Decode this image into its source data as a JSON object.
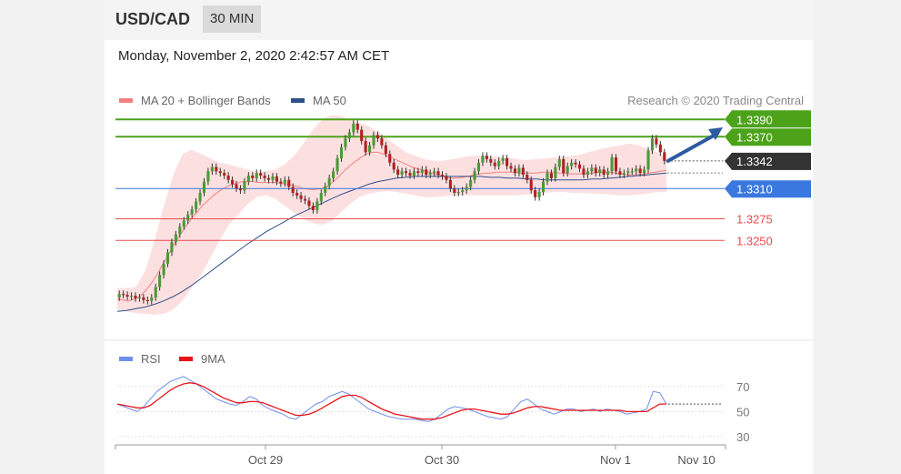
{
  "header": {
    "symbol": "USD/CAD",
    "timeframe": "30 MIN"
  },
  "datetime": "Monday, November 2, 2020 2:42:57 AM CET",
  "credit": "Research © 2020 Trading Central",
  "legend": {
    "ma20": {
      "label": "MA 20 + Bollinger Bands",
      "color": "#f28080"
    },
    "ma50": {
      "label": "MA 50",
      "color": "#2e4f8a"
    }
  },
  "rsi_legend": {
    "rsi": {
      "label": "RSI",
      "color": "#6f8fe8"
    },
    "ma9": {
      "label": "9MA",
      "color": "#e8151b"
    }
  },
  "colors": {
    "resistance": "#4ca31a",
    "pivot": "#3a78e0",
    "support": "#e84b4b",
    "current": "#333333",
    "bull": "#4a9a35",
    "bear": "#b02020",
    "arrow": "#2e5aa0"
  },
  "chart_data": [
    {
      "type": "candlestick",
      "ylim": [
        1.3145,
        1.3405
      ],
      "x_labels": [
        "Oct 29",
        "Oct 30",
        "Nov 1",
        "Nov 10"
      ],
      "levels": [
        {
          "name": "resistance-2",
          "value": 1.339,
          "label": "1.3390",
          "kind": "resistance"
        },
        {
          "name": "resistance-1",
          "value": 1.337,
          "label": "1.3370",
          "kind": "resistance"
        },
        {
          "name": "current",
          "value": 1.3342,
          "label": "1.3342",
          "kind": "current"
        },
        {
          "name": "pivot",
          "value": 1.331,
          "label": "1.3310",
          "kind": "pivot"
        },
        {
          "name": "support-1",
          "value": 1.3275,
          "label": "1.3275",
          "kind": "support"
        },
        {
          "name": "support-2",
          "value": 1.325,
          "label": "1.3250",
          "kind": "support"
        }
      ],
      "close": [
        1.3188,
        1.3187,
        1.3185,
        1.3186,
        1.3183,
        1.3184,
        1.3181,
        1.318,
        1.3184,
        1.3196,
        1.321,
        1.3223,
        1.3236,
        1.3248,
        1.3257,
        1.3266,
        1.3273,
        1.328,
        1.3286,
        1.3295,
        1.3305,
        1.3318,
        1.333,
        1.3335,
        1.333,
        1.3328,
        1.3325,
        1.332,
        1.3315,
        1.331,
        1.3308,
        1.3318,
        1.3325,
        1.3322,
        1.3328,
        1.3325,
        1.3322,
        1.332,
        1.3324,
        1.3318,
        1.3316,
        1.332,
        1.3312,
        1.3305,
        1.3302,
        1.3298,
        1.3296,
        1.329,
        1.3285,
        1.3295,
        1.3305,
        1.3313,
        1.3322,
        1.333,
        1.3345,
        1.3358,
        1.3368,
        1.3375,
        1.3385,
        1.3378,
        1.3365,
        1.3352,
        1.336,
        1.3372,
        1.3368,
        1.336,
        1.335,
        1.334,
        1.3332,
        1.3326,
        1.333,
        1.3328,
        1.3325,
        1.333,
        1.3328,
        1.3332,
        1.3326,
        1.3328,
        1.333,
        1.3326,
        1.3324,
        1.332,
        1.331,
        1.3305,
        1.3306,
        1.3308,
        1.3312,
        1.332,
        1.333,
        1.334,
        1.3348,
        1.3344,
        1.334,
        1.3336,
        1.3342,
        1.3345,
        1.3336,
        1.3333,
        1.3328,
        1.3334,
        1.3326,
        1.332,
        1.3308,
        1.33,
        1.3306,
        1.3318,
        1.3328,
        1.3322,
        1.3335,
        1.3344,
        1.3328,
        1.3336,
        1.334,
        1.3338,
        1.3333,
        1.3326,
        1.333,
        1.3334,
        1.3328,
        1.3332,
        1.3326,
        1.333,
        1.3346,
        1.333,
        1.3326,
        1.3328,
        1.333,
        1.333,
        1.3333,
        1.3328,
        1.3332,
        1.3354,
        1.3368,
        1.3361,
        1.3352,
        1.3342
      ],
      "ma20": [
        1.3182,
        1.3181,
        1.318,
        1.3182,
        1.3185,
        1.3192,
        1.32,
        1.321,
        1.3222,
        1.3233,
        1.3245,
        1.3256,
        1.3265,
        1.3274,
        1.3282,
        1.329,
        1.3296,
        1.3302,
        1.3307,
        1.3311,
        1.3314,
        1.3316,
        1.3318,
        1.3318,
        1.3318,
        1.3317,
        1.3317,
        1.3317,
        1.3317,
        1.3316,
        1.3315,
        1.3314,
        1.3312,
        1.331,
        1.3309,
        1.3309,
        1.331,
        1.3312,
        1.3317,
        1.3323,
        1.333,
        1.3336,
        1.3341,
        1.3346,
        1.335,
        1.3352,
        1.3352,
        1.335,
        1.3347,
        1.3344,
        1.3341,
        1.3338,
        1.3335,
        1.3333,
        1.3331,
        1.3329,
        1.3327,
        1.3325,
        1.3323,
        1.3322,
        1.3322,
        1.3323,
        1.3324,
        1.3326,
        1.3327,
        1.3328,
        1.3328,
        1.3329,
        1.3329,
        1.3329,
        1.3329,
        1.3328,
        1.3328,
        1.3328,
        1.3328,
        1.3329,
        1.3329,
        1.3329,
        1.3328,
        1.3328,
        1.3327,
        1.3327,
        1.3327,
        1.3327,
        1.3328,
        1.3329,
        1.3329,
        1.3329,
        1.3328,
        1.3327,
        1.3326,
        1.3326,
        1.3326,
        1.3327,
        1.3328,
        1.3329,
        1.333,
        1.3331
      ],
      "ma50": [
        1.3168,
        1.3169,
        1.3171,
        1.3173,
        1.3176,
        1.318,
        1.3185,
        1.3191,
        1.3198,
        1.3206,
        1.3214,
        1.3222,
        1.323,
        1.3238,
        1.3246,
        1.3253,
        1.326,
        1.3266,
        1.3272,
        1.3278,
        1.3283,
        1.3288,
        1.3293,
        1.3298,
        1.3303,
        1.3307,
        1.3311,
        1.3315,
        1.3318,
        1.332,
        1.3322,
        1.3323,
        1.3324,
        1.3324,
        1.3324,
        1.3324,
        1.3324,
        1.3324,
        1.3324,
        1.3324,
        1.3323,
        1.3323,
        1.3322,
        1.3322,
        1.3321,
        1.3321,
        1.332,
        1.332,
        1.332,
        1.332,
        1.332,
        1.3321,
        1.3321,
        1.3322,
        1.3323,
        1.3324,
        1.3325,
        1.3326,
        1.3327,
        1.3328
      ],
      "bb_upper": [
        1.3195,
        1.3195,
        1.3196,
        1.3215,
        1.325,
        1.329,
        1.3325,
        1.335,
        1.3355,
        1.335,
        1.3345,
        1.334,
        1.3338,
        1.3335,
        1.3332,
        1.333,
        1.333,
        1.3332,
        1.3338,
        1.3348,
        1.3362,
        1.3378,
        1.339,
        1.3395,
        1.3394,
        1.339,
        1.3386,
        1.3382,
        1.3376,
        1.3368,
        1.336,
        1.3352,
        1.3348,
        1.3344,
        1.3342,
        1.3342,
        1.3344,
        1.3346,
        1.3348,
        1.3348,
        1.3348,
        1.3347,
        1.3346,
        1.3344,
        1.3343,
        1.3344,
        1.3345,
        1.3346,
        1.3347,
        1.3348,
        1.335,
        1.3353,
        1.3356,
        1.3358,
        1.336,
        1.3362,
        1.336,
        1.3356,
        1.3352,
        1.3346
      ],
      "bb_lower": [
        1.317,
        1.3168,
        1.3166,
        1.3165,
        1.3164,
        1.3165,
        1.317,
        1.318,
        1.3195,
        1.321,
        1.323,
        1.325,
        1.3268,
        1.328,
        1.3292,
        1.33,
        1.3302,
        1.3298,
        1.329,
        1.3282,
        1.3275,
        1.327,
        1.3268,
        1.3272,
        1.3282,
        1.3292,
        1.33,
        1.3304,
        1.3306,
        1.3307,
        1.3306,
        1.3304,
        1.3302,
        1.33,
        1.33,
        1.3301,
        1.3302,
        1.3302,
        1.3302,
        1.3302,
        1.3302,
        1.3302,
        1.3302,
        1.3302,
        1.3303,
        1.3304,
        1.3305,
        1.3306,
        1.3306,
        1.3305,
        1.3305,
        1.3304,
        1.3304,
        1.3303,
        1.3302,
        1.3302,
        1.3303,
        1.3304,
        1.3306,
        1.3306
      ]
    },
    {
      "type": "line",
      "name": "rsi",
      "ylim": [
        30,
        80
      ],
      "y_ticks": [
        70,
        50,
        30
      ],
      "series": [
        {
          "name": "RSI",
          "values": [
            56,
            54,
            52,
            50,
            54,
            60,
            66,
            70,
            74,
            76,
            78,
            75,
            72,
            68,
            64,
            60,
            58,
            56,
            55,
            58,
            62,
            60,
            55,
            52,
            50,
            48,
            45,
            44,
            48,
            52,
            56,
            58,
            62,
            64,
            66,
            64,
            60,
            56,
            52,
            50,
            48,
            46,
            45,
            44,
            44,
            44,
            43,
            42,
            44,
            48,
            52,
            54,
            53,
            52,
            50,
            48,
            46,
            45,
            44,
            46,
            52,
            58,
            60,
            56,
            52,
            50,
            48,
            50,
            52,
            52,
            50,
            51,
            52,
            50,
            52,
            51,
            50,
            48,
            49,
            50,
            52,
            66,
            65,
            56
          ]
        },
        {
          "name": "9MA",
          "values": [
            56,
            55,
            54,
            53,
            53,
            55,
            59,
            63,
            67,
            70,
            72,
            73,
            72,
            70,
            67,
            64,
            61,
            59,
            57,
            57,
            58,
            58,
            57,
            55,
            53,
            51,
            49,
            47,
            47,
            48,
            50,
            53,
            56,
            59,
            62,
            63,
            63,
            61,
            58,
            55,
            52,
            50,
            48,
            47,
            46,
            45,
            44,
            44,
            44,
            45,
            47,
            49,
            51,
            52,
            52,
            51,
            50,
            49,
            48,
            48,
            49,
            51,
            53,
            54,
            54,
            53,
            52,
            51,
            51,
            51,
            51,
            51,
            51,
            51,
            51,
            51,
            51,
            50,
            50,
            50,
            50,
            53,
            56,
            56
          ]
        }
      ]
    }
  ]
}
